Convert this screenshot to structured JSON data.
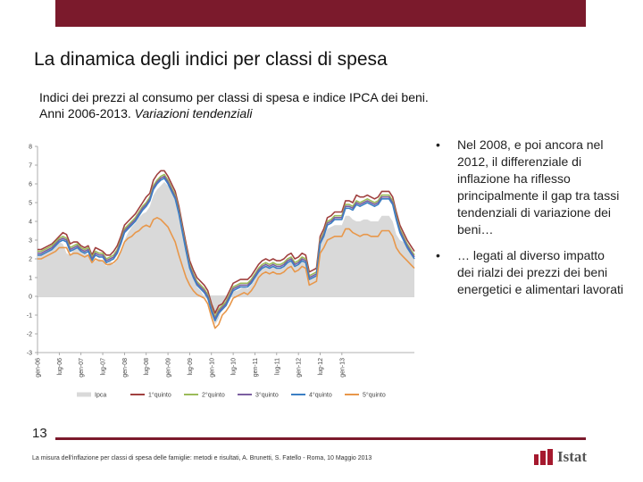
{
  "slide": {
    "title": "La dinamica degli indici per classi di spesa",
    "subtitle_line1": "Indici dei prezzi al consumo per classi di spesa e indice IPCA dei beni.",
    "subtitle_line2_plain": "Anni 2006-2013. ",
    "subtitle_line2_italic": "Variazioni tendenziali",
    "bullets": [
      "Nel 2008, e poi ancora nel 2012, il differenziale di inflazione ha riflesso principalmente il gap tra tassi tendenziali di variazione dei beni…",
      "… legati al diverso impatto dei rialzi dei prezzi dei beni energetici e alimentari lavorati"
    ],
    "bullet_symbol": "•",
    "slide_number": "13",
    "footer": "La misura dell'inflazione per classi di spesa delle famiglie: metodi e risultati, A. Brunetti, S. Fatello - Roma, 10 Maggio 2013",
    "logo_text": "Istat",
    "accent_color": "#7b1a2c"
  },
  "chart_data": {
    "type": "line",
    "ylim": [
      -3,
      8
    ],
    "yticks": [
      "8",
      "7",
      "6",
      "5",
      "4",
      "3",
      "2",
      "1",
      "0",
      "-1",
      "-2",
      "-3"
    ],
    "xtick_labels": [
      "gen-06",
      "lug-06",
      "gen-07",
      "lug-07",
      "gen-08",
      "lug-08",
      "gen-09",
      "lug-09",
      "gen-10",
      "lug-10",
      "gen-11",
      "lug-11",
      "gen-12",
      "lug-12",
      "gen-13"
    ],
    "legend": [
      "Ipca",
      "1°quinto",
      "2°quinto",
      "3°quinto",
      "4°quinto",
      "5°quinto"
    ],
    "colors": [
      "#d9d9d9",
      "#a0403f",
      "#9bbb59",
      "#7b5fa0",
      "#3b7fc4",
      "#e8974a"
    ],
    "series": [
      {
        "name": "Ipca",
        "values": [
          2.2,
          2.3,
          2.4,
          2.5,
          2.6,
          2.8,
          2.9,
          2.8,
          2.3,
          2.2,
          2.5,
          2.7,
          2.6,
          2.4,
          2.2,
          1.8,
          1.9,
          2.0,
          1.9,
          1.6,
          1.9,
          1.7,
          2.0,
          2.4,
          3.0,
          3.4,
          3.7,
          3.9,
          4.2,
          4.4,
          4.5,
          4.8,
          5.4,
          5.7,
          5.9,
          6.1,
          5.9,
          5.6,
          5.2,
          4.3,
          3.3,
          2.3,
          1.4,
          0.9,
          0.5,
          0.3,
          0.0,
          -0.2,
          -1.0,
          -1.5,
          -1.2,
          -0.6,
          -0.5,
          -0.1,
          0.3,
          0.3,
          0.4,
          0.5,
          0.4,
          0.6,
          0.9,
          1.3,
          1.5,
          1.6,
          1.5,
          1.6,
          1.5,
          1.5,
          1.6,
          1.8,
          1.9,
          1.6,
          1.7,
          1.9,
          1.8,
          0.9,
          1.0,
          1.1,
          2.7,
          3.1,
          3.6,
          3.7,
          3.8,
          3.8,
          3.8,
          4.3,
          4.3,
          4.1,
          4.0,
          4.0,
          4.1,
          4.1,
          4.0,
          4.0,
          4.0,
          4.3,
          4.3,
          4.3,
          4.0,
          3.3,
          3.0,
          2.9,
          2.6,
          2.3,
          2.0
        ]
      },
      {
        "name": "1°quinto",
        "values": [
          2.5,
          2.5,
          2.6,
          2.7,
          2.8,
          3.0,
          3.2,
          3.4,
          3.3,
          2.8,
          2.9,
          2.9,
          2.7,
          2.6,
          2.7,
          2.2,
          2.6,
          2.5,
          2.4,
          2.2,
          2.2,
          2.4,
          2.7,
          3.2,
          3.8,
          4.0,
          4.2,
          4.4,
          4.7,
          5.0,
          5.3,
          5.5,
          6.2,
          6.5,
          6.7,
          6.7,
          6.4,
          6.0,
          5.6,
          4.8,
          3.8,
          2.8,
          1.9,
          1.4,
          1.0,
          0.8,
          0.6,
          0.3,
          -0.4,
          -0.9,
          -0.5,
          -0.4,
          -0.1,
          0.3,
          0.7,
          0.8,
          0.9,
          0.9,
          0.9,
          1.1,
          1.4,
          1.7,
          1.9,
          2.0,
          1.9,
          2.0,
          1.9,
          1.9,
          2.0,
          2.2,
          2.3,
          2.0,
          2.1,
          2.3,
          2.2,
          1.3,
          1.4,
          1.5,
          3.2,
          3.6,
          4.2,
          4.3,
          4.5,
          4.5,
          4.5,
          5.1,
          5.1,
          5.0,
          5.4,
          5.3,
          5.3,
          5.4,
          5.3,
          5.2,
          5.3,
          5.6,
          5.6,
          5.6,
          5.3,
          4.5,
          3.8,
          3.4,
          3.0,
          2.7,
          2.4
        ]
      },
      {
        "name": "2°quinto",
        "values": [
          2.4,
          2.4,
          2.5,
          2.6,
          2.7,
          2.9,
          3.1,
          3.2,
          3.1,
          2.6,
          2.7,
          2.8,
          2.6,
          2.5,
          2.6,
          2.1,
          2.4,
          2.3,
          2.3,
          2.0,
          2.1,
          2.2,
          2.5,
          3.0,
          3.6,
          3.8,
          4.0,
          4.2,
          4.5,
          4.8,
          5.0,
          5.3,
          5.9,
          6.2,
          6.4,
          6.5,
          6.2,
          5.8,
          5.4,
          4.6,
          3.6,
          2.6,
          1.7,
          1.2,
          0.8,
          0.6,
          0.4,
          0.1,
          -0.6,
          -1.1,
          -0.7,
          -0.5,
          -0.3,
          0.1,
          0.5,
          0.6,
          0.7,
          0.7,
          0.7,
          0.9,
          1.2,
          1.5,
          1.7,
          1.8,
          1.7,
          1.8,
          1.7,
          1.7,
          1.8,
          2.0,
          2.1,
          1.8,
          1.9,
          2.1,
          2.0,
          1.1,
          1.2,
          1.3,
          3.0,
          3.4,
          4.0,
          4.1,
          4.3,
          4.3,
          4.3,
          4.9,
          4.9,
          4.8,
          5.1,
          5.0,
          5.1,
          5.2,
          5.1,
          5.0,
          5.1,
          5.4,
          5.4,
          5.4,
          5.1,
          4.3,
          3.6,
          3.2,
          2.8,
          2.5,
          2.2
        ]
      },
      {
        "name": "3°quinto",
        "values": [
          2.3,
          2.3,
          2.4,
          2.5,
          2.6,
          2.8,
          3.0,
          3.1,
          3.0,
          2.5,
          2.6,
          2.7,
          2.5,
          2.4,
          2.5,
          2.0,
          2.3,
          2.2,
          2.2,
          1.9,
          2.0,
          2.1,
          2.4,
          2.9,
          3.5,
          3.7,
          3.9,
          4.1,
          4.4,
          4.7,
          4.9,
          5.2,
          5.8,
          6.1,
          6.3,
          6.4,
          6.1,
          5.7,
          5.3,
          4.5,
          3.5,
          2.5,
          1.6,
          1.1,
          0.7,
          0.5,
          0.3,
          0.0,
          -0.7,
          -1.2,
          -0.8,
          -0.6,
          -0.4,
          0.0,
          0.4,
          0.5,
          0.6,
          0.6,
          0.6,
          0.8,
          1.1,
          1.4,
          1.6,
          1.7,
          1.6,
          1.7,
          1.6,
          1.6,
          1.7,
          1.9,
          2.0,
          1.7,
          1.8,
          2.0,
          1.9,
          1.0,
          1.1,
          1.2,
          2.9,
          3.3,
          3.9,
          4.0,
          4.2,
          4.2,
          4.2,
          4.8,
          4.8,
          4.7,
          5.0,
          4.9,
          5.0,
          5.1,
          5.0,
          4.9,
          5.0,
          5.3,
          5.3,
          5.3,
          5.0,
          4.2,
          3.5,
          3.1,
          2.7,
          2.4,
          2.1
        ]
      },
      {
        "name": "4°quinto",
        "values": [
          2.2,
          2.2,
          2.3,
          2.4,
          2.5,
          2.7,
          2.9,
          3.0,
          2.9,
          2.4,
          2.5,
          2.6,
          2.4,
          2.3,
          2.4,
          1.9,
          2.2,
          2.1,
          2.1,
          1.8,
          1.9,
          2.0,
          2.3,
          2.8,
          3.4,
          3.6,
          3.8,
          4.0,
          4.3,
          4.6,
          4.8,
          5.1,
          5.7,
          6.0,
          6.2,
          6.3,
          6.0,
          5.6,
          5.2,
          4.4,
          3.4,
          2.4,
          1.5,
          1.0,
          0.6,
          0.4,
          0.2,
          -0.1,
          -0.8,
          -1.3,
          -0.9,
          -0.7,
          -0.5,
          -0.1,
          0.3,
          0.4,
          0.5,
          0.5,
          0.5,
          0.7,
          1.0,
          1.3,
          1.5,
          1.6,
          1.5,
          1.6,
          1.5,
          1.5,
          1.6,
          1.8,
          1.9,
          1.6,
          1.7,
          1.9,
          1.8,
          0.9,
          1.0,
          1.1,
          2.8,
          3.2,
          3.8,
          3.9,
          4.1,
          4.1,
          4.1,
          4.7,
          4.7,
          4.6,
          4.9,
          4.8,
          4.9,
          5.0,
          4.9,
          4.8,
          4.9,
          5.2,
          5.2,
          5.2,
          4.9,
          4.1,
          3.4,
          3.0,
          2.6,
          2.3,
          2.0
        ]
      },
      {
        "name": "5°quinto",
        "values": [
          2.0,
          2.0,
          2.1,
          2.2,
          2.3,
          2.4,
          2.6,
          2.6,
          2.6,
          2.2,
          2.3,
          2.3,
          2.2,
          2.1,
          2.2,
          1.8,
          2.0,
          1.9,
          1.9,
          1.7,
          1.7,
          1.8,
          2.0,
          2.4,
          2.9,
          3.1,
          3.2,
          3.4,
          3.5,
          3.7,
          3.8,
          3.7,
          4.1,
          4.2,
          4.1,
          3.9,
          3.7,
          3.3,
          2.9,
          2.2,
          1.6,
          1.0,
          0.6,
          0.3,
          0.1,
          0.0,
          -0.1,
          -0.4,
          -1.1,
          -1.7,
          -1.5,
          -1.0,
          -0.8,
          -0.5,
          -0.1,
          0.0,
          0.1,
          0.2,
          0.1,
          0.3,
          0.6,
          1.0,
          1.2,
          1.3,
          1.2,
          1.3,
          1.2,
          1.2,
          1.3,
          1.5,
          1.6,
          1.3,
          1.4,
          1.6,
          1.5,
          0.6,
          0.7,
          0.8,
          2.3,
          2.6,
          3.0,
          3.1,
          3.2,
          3.2,
          3.2,
          3.6,
          3.6,
          3.4,
          3.3,
          3.2,
          3.3,
          3.3,
          3.2,
          3.2,
          3.2,
          3.5,
          3.5,
          3.5,
          3.2,
          2.6,
          2.3,
          2.1,
          1.9,
          1.7,
          1.5
        ]
      }
    ]
  }
}
